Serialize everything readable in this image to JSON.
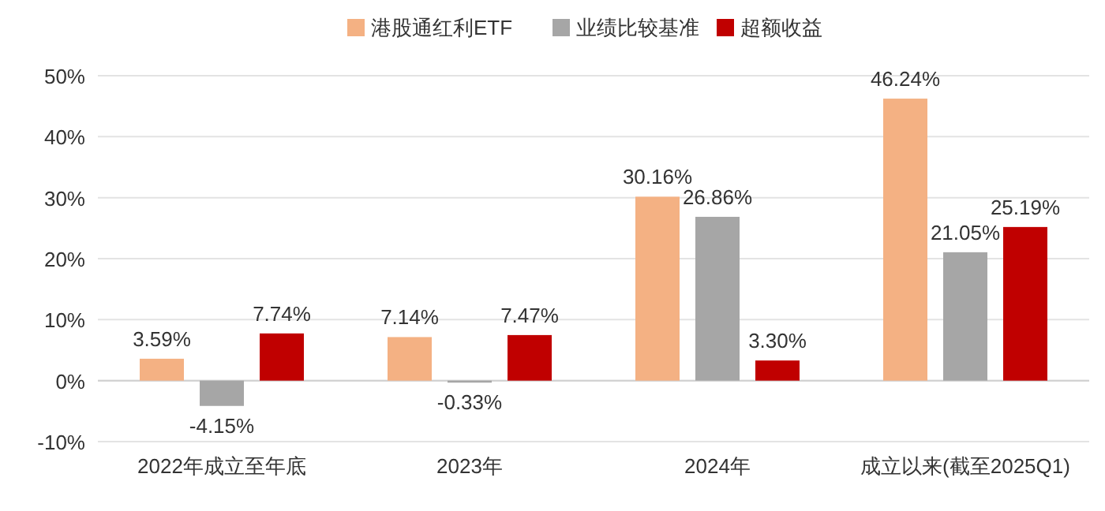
{
  "chart_data": {
    "type": "bar",
    "categories": [
      "2022年成立至年底",
      "2023年",
      "2024年",
      "成立以来(截至2025Q1)"
    ],
    "series": [
      {
        "name": "港股通红利ETF",
        "color": "#f4b183",
        "values": [
          3.59,
          7.14,
          30.16,
          46.24
        ],
        "value_labels": [
          "3.59%",
          "7.14%",
          "30.16%",
          "46.24%"
        ]
      },
      {
        "name": "业绩比较基准",
        "color": "#a6a6a6",
        "values": [
          -4.15,
          -0.33,
          26.86,
          21.05
        ],
        "value_labels": [
          "-4.15%",
          "-0.33%",
          "26.86%",
          "21.05%"
        ]
      },
      {
        "name": "超额收益",
        "color": "#c00000",
        "values": [
          7.74,
          7.47,
          3.3,
          25.19
        ],
        "value_labels": [
          "7.74%",
          "7.47%",
          "3.30%",
          "25.19%"
        ]
      }
    ],
    "ylim": [
      -10,
      50
    ],
    "yticks": [
      {
        "value": -10,
        "label": "-10%"
      },
      {
        "value": 0,
        "label": "0%"
      },
      {
        "value": 10,
        "label": "10%"
      },
      {
        "value": 20,
        "label": "20%"
      },
      {
        "value": 30,
        "label": "30%"
      },
      {
        "value": 40,
        "label": "40%"
      },
      {
        "value": 50,
        "label": "50%"
      }
    ],
    "grid": "y",
    "legend": "top"
  }
}
